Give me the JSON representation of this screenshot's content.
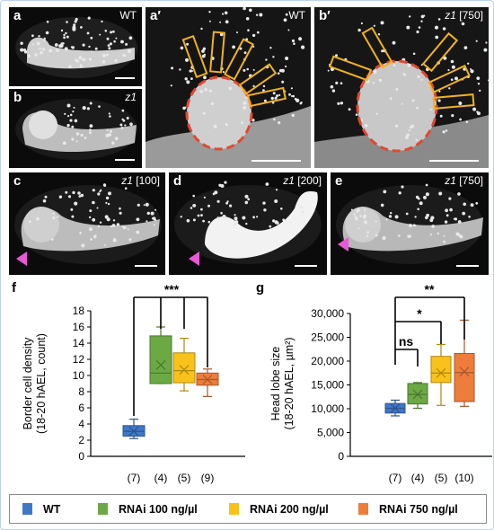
{
  "colors": {
    "wt": "#3f78c9",
    "r100": "#6ca944",
    "r200": "#f8c21a",
    "r750": "#ee7d3b",
    "box_outline_darker": true,
    "ellipse": "#e2482e",
    "rect": "#f1b21e",
    "arrow": "#e759d8"
  },
  "panels": [
    {
      "id": "a",
      "label": "a",
      "genotype_pre": "",
      "genotype_italic": "",
      "genotype_post": "WT"
    },
    {
      "id": "a_prime",
      "label": "a′",
      "genotype_pre": "",
      "genotype_italic": "",
      "genotype_post": "WT"
    },
    {
      "id": "b_prime",
      "label": "b′",
      "genotype_pre": "",
      "genotype_italic": "z1",
      "genotype_post": " [750]"
    },
    {
      "id": "b",
      "label": "b",
      "genotype_pre": "",
      "genotype_italic": "z1",
      "genotype_post": ""
    },
    {
      "id": "c",
      "label": "c",
      "genotype_pre": "",
      "genotype_italic": "z1",
      "genotype_post": " [100]"
    },
    {
      "id": "d",
      "label": "d",
      "genotype_pre": "",
      "genotype_italic": "z1",
      "genotype_post": " [200]"
    },
    {
      "id": "e",
      "label": "e",
      "genotype_pre": "",
      "genotype_italic": "z1",
      "genotype_post": " [750]"
    }
  ],
  "chart_labels": {
    "f": "f",
    "g": "g"
  },
  "chart_data": [
    {
      "type": "box",
      "panel": "f",
      "ylabel": [
        "Border cell density",
        "(18-20 hAEL, count)"
      ],
      "ylim": [
        0,
        18
      ],
      "yticks": [
        "0",
        "2",
        "4",
        "6",
        "8",
        "10",
        "12",
        "14",
        "16",
        "18"
      ],
      "groups": [
        {
          "name": "WT",
          "n": "(7)",
          "color": "#3f78c9",
          "min": 2.2,
          "q1": 2.5,
          "median": 3.1,
          "q3": 3.8,
          "max": 4.6,
          "mean": 3.1
        },
        {
          "name": "RNAi 100 ng/µl",
          "n": "(4)",
          "color": "#6ca944",
          "min": 9.0,
          "q1": 9.0,
          "median": 10.3,
          "q3": 14.9,
          "max": 16.0,
          "mean": 11.3
        },
        {
          "name": "RNAi 200 ng/µl",
          "n": "(5)",
          "color": "#f8c21a",
          "min": 8.1,
          "q1": 9.1,
          "median": 10.6,
          "q3": 12.8,
          "max": 14.6,
          "mean": 10.7
        },
        {
          "name": "RNAi 750 ng/µl",
          "n": "(9)",
          "color": "#ee7d3b",
          "min": 7.4,
          "q1": 8.8,
          "median": 9.5,
          "q3": 10.3,
          "max": 10.8,
          "mean": 9.5
        }
      ],
      "significance": [
        {
          "text": "***",
          "from": 0,
          "to": [
            1,
            2,
            3
          ]
        }
      ]
    },
    {
      "type": "box",
      "panel": "g",
      "ylabel": [
        "Head lobe size",
        "(18-20 hAEL, µm²)"
      ],
      "ylim": [
        0,
        30000
      ],
      "yticks": [
        "0",
        "5,000",
        "10,000",
        "15,000",
        "20,000",
        "25,000",
        "30,000"
      ],
      "groups": [
        {
          "name": "WT",
          "n": "(7)",
          "color": "#3f78c9",
          "min": 8500,
          "q1": 9100,
          "median": 10100,
          "q3": 11100,
          "max": 11800,
          "mean": 10100
        },
        {
          "name": "RNAi 100 ng/µl",
          "n": "(4)",
          "color": "#6ca944",
          "min": 10100,
          "q1": 11000,
          "median": 13000,
          "q3": 15300,
          "max": 15500,
          "mean": 13000
        },
        {
          "name": "RNAi 200 ng/µl",
          "n": "(5)",
          "color": "#f8c21a",
          "min": 10700,
          "q1": 15500,
          "median": 17500,
          "q3": 21000,
          "max": 23500,
          "mean": 17500
        },
        {
          "name": "RNAi 750 ng/µl",
          "n": "(10)",
          "color": "#ee7d3b",
          "min": 10500,
          "q1": 11500,
          "median": 17600,
          "q3": 21600,
          "max": 28600,
          "mean": 17800
        }
      ],
      "significance": [
        {
          "text": "ns",
          "from": 0,
          "to": [
            1
          ]
        },
        {
          "text": "*",
          "from": 0,
          "to": [
            2
          ]
        },
        {
          "text": "**",
          "from": 0,
          "to": [
            3
          ]
        }
      ]
    }
  ],
  "legend": [
    {
      "label": "WT",
      "color": "#3f78c9"
    },
    {
      "label": "RNAi 100 ng/µl",
      "color": "#6ca944"
    },
    {
      "label": "RNAi 200 ng/µl",
      "color": "#f8c21a"
    },
    {
      "label": "RNAi 750 ng/µl",
      "color": "#ee7d3b"
    }
  ]
}
